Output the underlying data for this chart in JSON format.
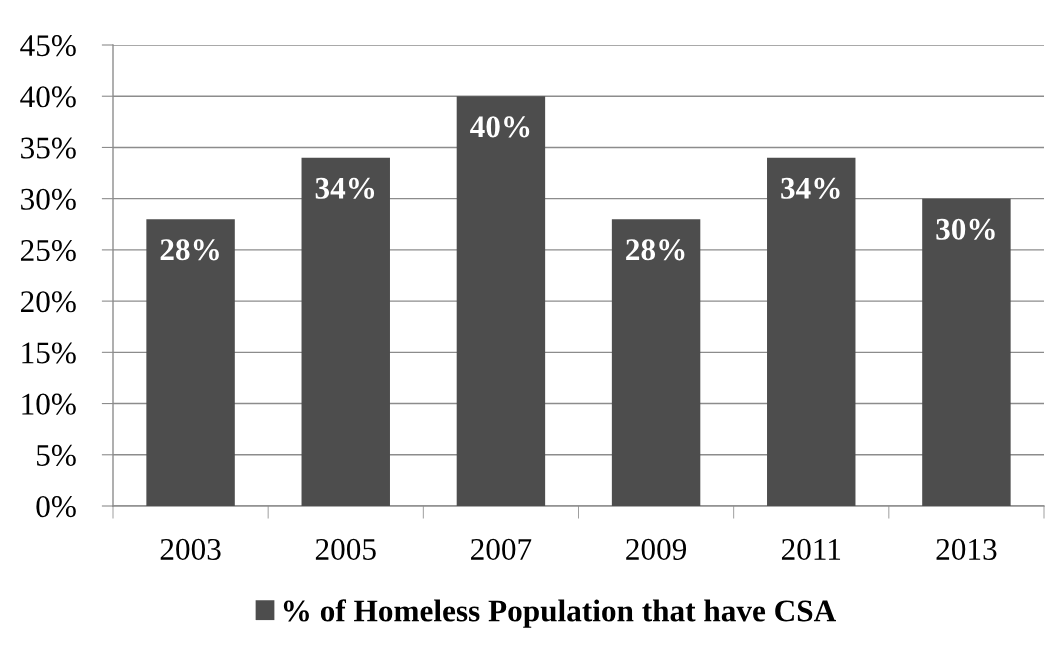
{
  "chart_data": {
    "type": "bar",
    "categories": [
      "2003",
      "2005",
      "2007",
      "2009",
      "2011",
      "2013"
    ],
    "series": [
      {
        "name": "% of Homeless Population that have CSA",
        "color": "#4d4d4d",
        "values": [
          28,
          34,
          40,
          28,
          34,
          30
        ],
        "value_labels": [
          "28%",
          "34%",
          "40%",
          "28%",
          "34%",
          "30%"
        ]
      }
    ],
    "ylim": [
      0,
      45
    ],
    "yticks": [
      {
        "value": 0,
        "label": "0%"
      },
      {
        "value": 5,
        "label": "5%"
      },
      {
        "value": 10,
        "label": "10%"
      },
      {
        "value": 15,
        "label": "15%"
      },
      {
        "value": 20,
        "label": "20%"
      },
      {
        "value": 25,
        "label": "25%"
      },
      {
        "value": 30,
        "label": "30%"
      },
      {
        "value": 35,
        "label": "35%"
      },
      {
        "value": 40,
        "label": "40%"
      },
      {
        "value": 45,
        "label": "45%"
      }
    ],
    "grid": "y",
    "legend": "bottom"
  }
}
